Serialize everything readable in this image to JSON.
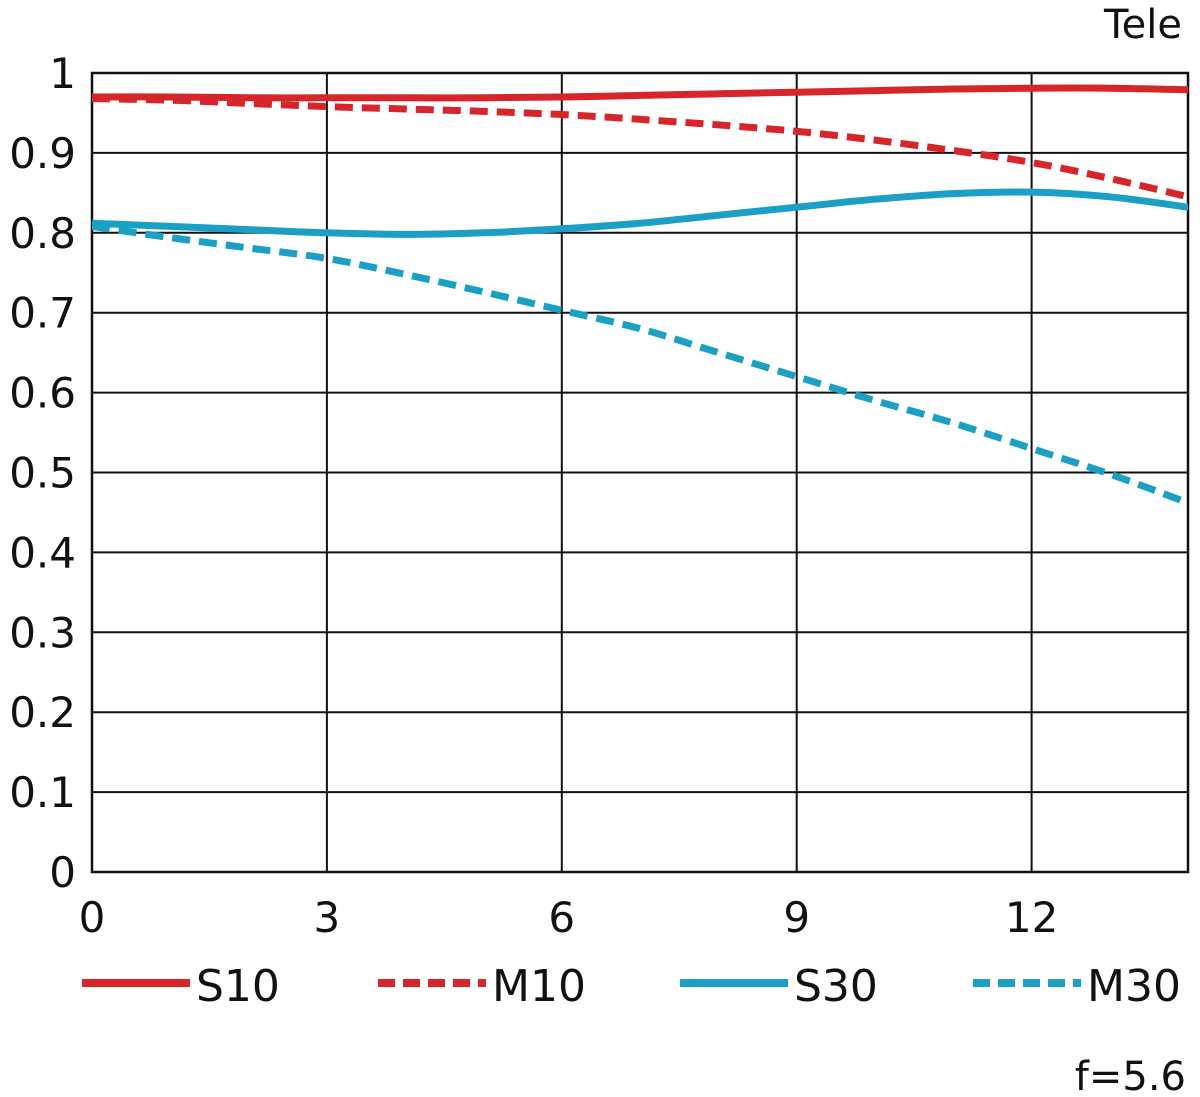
{
  "chart_data": {
    "type": "line",
    "title": "",
    "subtitle": "",
    "xlabel": "",
    "ylabel": "",
    "corner_label_top": "Tele",
    "corner_label_bottom": "f=5.6",
    "xlim": [
      0,
      14
    ],
    "ylim": [
      0,
      1
    ],
    "x_ticks": [
      "0",
      "3",
      "6",
      "9",
      "12"
    ],
    "y_ticks": [
      "0",
      "0.1",
      "0.2",
      "0.3",
      "0.4",
      "0.5",
      "0.6",
      "0.7",
      "0.8",
      "0.9",
      "1"
    ],
    "grid": true,
    "legend_position": "bottom",
    "series": [
      {
        "name": "S10",
        "color": "#d7262b",
        "style": "solid",
        "x": [
          0,
          1,
          2,
          3,
          4,
          5,
          6,
          7,
          8,
          9,
          10,
          11,
          12,
          13,
          14
        ],
        "y": [
          0.97,
          0.97,
          0.969,
          0.969,
          0.969,
          0.969,
          0.97,
          0.972,
          0.974,
          0.976,
          0.978,
          0.98,
          0.981,
          0.981,
          0.979
        ]
      },
      {
        "name": "M10",
        "color": "#d7262b",
        "style": "dashed",
        "x": [
          0,
          1,
          2,
          3,
          4,
          5,
          6,
          7,
          8,
          9,
          10,
          11,
          12,
          13,
          14
        ],
        "y": [
          0.968,
          0.966,
          0.962,
          0.958,
          0.955,
          0.952,
          0.948,
          0.942,
          0.935,
          0.927,
          0.916,
          0.903,
          0.888,
          0.868,
          0.845
        ]
      },
      {
        "name": "S30",
        "color": "#1a9fc5",
        "style": "solid",
        "x": [
          0,
          1,
          2,
          3,
          4,
          5,
          6,
          7,
          8,
          9,
          10,
          11,
          12,
          13,
          14
        ],
        "y": [
          0.812,
          0.808,
          0.804,
          0.8,
          0.798,
          0.8,
          0.805,
          0.812,
          0.822,
          0.832,
          0.842,
          0.849,
          0.851,
          0.845,
          0.832
        ]
      },
      {
        "name": "M30",
        "color": "#1a9fc5",
        "style": "dashed",
        "x": [
          0,
          1,
          2,
          3,
          4,
          5,
          6,
          7,
          8,
          9,
          10,
          11,
          12,
          13,
          14
        ],
        "y": [
          0.808,
          0.794,
          0.781,
          0.768,
          0.748,
          0.726,
          0.703,
          0.68,
          0.65,
          0.62,
          0.59,
          0.562,
          0.53,
          0.498,
          0.462
        ]
      }
    ]
  }
}
